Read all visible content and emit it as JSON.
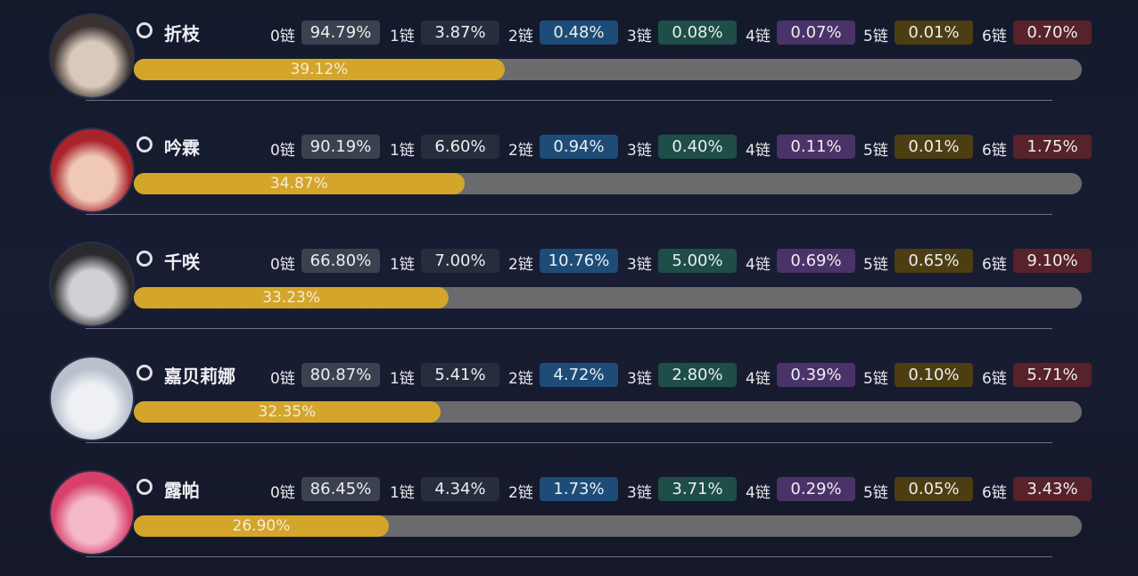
{
  "chain_labels": [
    "0链",
    "1链",
    "2链",
    "3链",
    "4链",
    "5链",
    "6链"
  ],
  "xlim": [
    0,
    100
  ],
  "characters": [
    {
      "name": "折枝",
      "usage": 39.12,
      "usage_label": "39.12%",
      "chains": [
        "94.79%",
        "3.87%",
        "0.48%",
        "0.08%",
        "0.07%",
        "0.01%",
        "0.70%"
      ]
    },
    {
      "name": "吟霖",
      "usage": 34.87,
      "usage_label": "34.87%",
      "chains": [
        "90.19%",
        "6.60%",
        "0.94%",
        "0.40%",
        "0.11%",
        "0.01%",
        "1.75%"
      ]
    },
    {
      "name": "千咲",
      "usage": 33.23,
      "usage_label": "33.23%",
      "chains": [
        "66.80%",
        "7.00%",
        "10.76%",
        "5.00%",
        "0.69%",
        "0.65%",
        "9.10%"
      ]
    },
    {
      "name": "嘉贝莉娜",
      "usage": 32.35,
      "usage_label": "32.35%",
      "chains": [
        "80.87%",
        "5.41%",
        "4.72%",
        "2.80%",
        "0.39%",
        "0.10%",
        "5.71%"
      ]
    },
    {
      "name": "露帕",
      "usage": 26.9,
      "usage_label": "26.90%",
      "chains": [
        "86.45%",
        "4.34%",
        "1.73%",
        "3.71%",
        "0.29%",
        "0.05%",
        "3.43%"
      ]
    }
  ]
}
